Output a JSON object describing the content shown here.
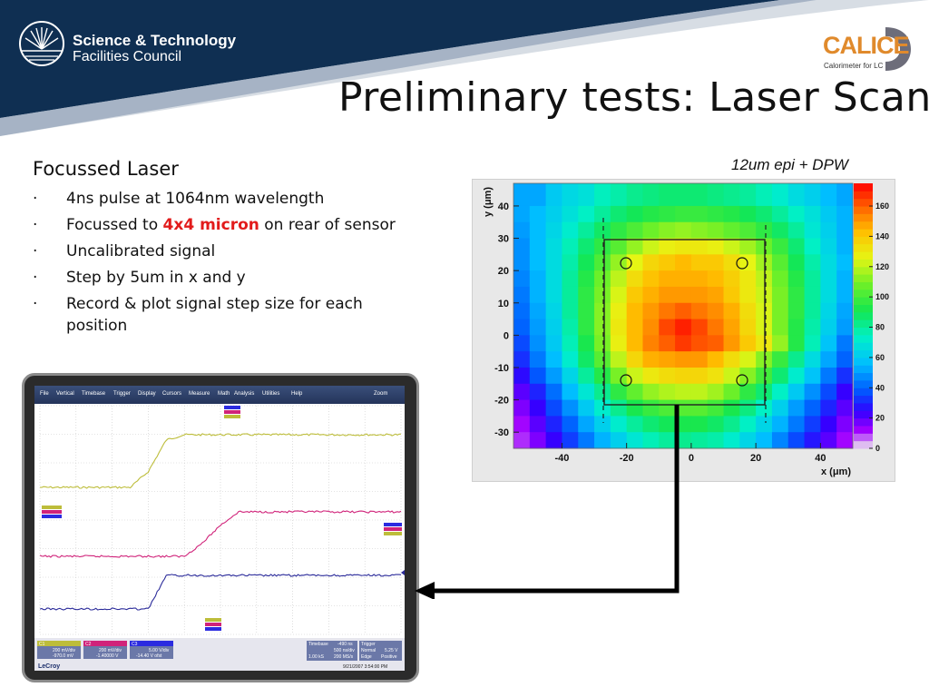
{
  "header": {
    "org_line1": "Science & Technology",
    "org_line2": "Facilities Council",
    "logo_icon": "sunburst-logo-icon",
    "calice_text": "CALICE",
    "calice_sub": "Calorimeter for LC",
    "title": "Preliminary tests: Laser Scan"
  },
  "left": {
    "panel_title": "Focussed Laser",
    "bullet_glyph": "·",
    "bullets": [
      {
        "text": "4ns pulse at 1064nm wavelength"
      },
      {
        "pre": "Focussed to ",
        "highlight": "4x4 micron",
        "post": " on rear of sensor"
      },
      {
        "text": "Uncalibrated signal"
      },
      {
        "text": "Step by 5um in x and y"
      },
      {
        "text": "Record & plot signal step size for each position"
      }
    ],
    "highlight_color": "#e21b1b"
  },
  "caption": "12um epi + DPW",
  "chart_data": [
    {
      "type": "heatmap",
      "xlabel": "x (μm)",
      "ylabel": "y (μm)",
      "x_ticks": [
        -40,
        -20,
        0,
        20,
        40
      ],
      "y_ticks": [
        -30,
        -20,
        -10,
        0,
        10,
        20,
        30,
        40
      ],
      "xlim": [
        -55,
        50
      ],
      "ylim": [
        -35,
        47
      ],
      "colorbar_ticks": [
        0,
        20,
        40,
        60,
        80,
        100,
        120,
        140,
        160
      ],
      "zlim": [
        0,
        175
      ],
      "x_bin_edges": [
        -55,
        -50,
        -45,
        -40,
        -35,
        -30,
        -25,
        -20,
        -15,
        -10,
        -5,
        0,
        5,
        10,
        15,
        20,
        25,
        30,
        35,
        40,
        45,
        50
      ],
      "y_bin_edges": [
        -35,
        -30,
        -25,
        -20,
        -15,
        -10,
        -5,
        0,
        5,
        10,
        15,
        20,
        25,
        30,
        35,
        40,
        47
      ],
      "z_rows_top_to_bottom": [
        [
          52,
          52,
          60,
          65,
          68,
          75,
          78,
          82,
          84,
          86,
          86,
          86,
          84,
          82,
          80,
          76,
          72,
          66,
          62,
          56,
          52
        ],
        [
          52,
          56,
          62,
          68,
          74,
          80,
          86,
          90,
          94,
          96,
          98,
          98,
          96,
          94,
          90,
          86,
          80,
          74,
          68,
          60,
          54
        ],
        [
          50,
          56,
          64,
          72,
          80,
          88,
          96,
          102,
          108,
          112,
          114,
          112,
          110,
          106,
          102,
          96,
          88,
          80,
          70,
          62,
          54
        ],
        [
          48,
          56,
          66,
          76,
          86,
          96,
          104,
          114,
          122,
          128,
          130,
          130,
          128,
          122,
          116,
          108,
          98,
          86,
          74,
          64,
          54
        ],
        [
          48,
          56,
          66,
          78,
          90,
          102,
          114,
          126,
          136,
          140,
          144,
          140,
          140,
          134,
          126,
          116,
          104,
          90,
          78,
          66,
          56
        ],
        [
          46,
          54,
          66,
          80,
          94,
          108,
          120,
          134,
          142,
          146,
          146,
          146,
          144,
          138,
          130,
          120,
          108,
          94,
          80,
          66,
          54
        ],
        [
          44,
          54,
          66,
          80,
          96,
          110,
          124,
          140,
          146,
          150,
          150,
          150,
          148,
          140,
          130,
          122,
          110,
          96,
          80,
          66,
          54
        ],
        [
          42,
          52,
          64,
          80,
          96,
          112,
          128,
          144,
          150,
          156,
          160,
          156,
          152,
          146,
          134,
          124,
          110,
          96,
          80,
          64,
          52
        ],
        [
          40,
          50,
          62,
          78,
          96,
          112,
          130,
          144,
          152,
          164,
          170,
          164,
          156,
          148,
          136,
          124,
          110,
          94,
          78,
          62,
          50
        ],
        [
          36,
          48,
          60,
          76,
          92,
          110,
          128,
          144,
          154,
          160,
          166,
          162,
          160,
          150,
          140,
          130,
          114,
          94,
          76,
          58,
          44
        ],
        [
          32,
          44,
          56,
          72,
          88,
          104,
          120,
          136,
          146,
          148,
          150,
          150,
          144,
          134,
          124,
          112,
          98,
          82,
          66,
          52,
          40
        ],
        [
          26,
          38,
          50,
          64,
          80,
          94,
          110,
          122,
          130,
          134,
          136,
          136,
          132,
          122,
          112,
          100,
          86,
          72,
          58,
          44,
          32
        ],
        [
          20,
          30,
          42,
          56,
          70,
          82,
          96,
          106,
          114,
          118,
          120,
          120,
          116,
          108,
          96,
          86,
          74,
          60,
          48,
          36,
          24
        ],
        [
          16,
          24,
          36,
          48,
          60,
          72,
          82,
          92,
          98,
          102,
          104,
          104,
          100,
          92,
          84,
          74,
          62,
          50,
          40,
          30,
          20
        ],
        [
          12,
          20,
          30,
          40,
          52,
          62,
          72,
          80,
          86,
          90,
          92,
          92,
          88,
          82,
          74,
          64,
          54,
          44,
          34,
          24,
          16
        ],
        [
          10,
          16,
          24,
          34,
          44,
          54,
          62,
          70,
          76,
          80,
          82,
          80,
          78,
          72,
          64,
          56,
          46,
          36,
          28,
          20,
          12
        ]
      ]
    },
    {
      "type": "line",
      "title": "",
      "x_units": "ns",
      "x": [
        -490,
        -245,
        0,
        245,
        490,
        735,
        980,
        1225,
        1470,
        1715,
        1960,
        2205,
        2450,
        2695,
        2940,
        3185,
        3430,
        3675,
        3920,
        4165,
        4410
      ],
      "series": [
        {
          "name": "C1",
          "color": "#bdbd3a",
          "values": [
            0,
            0,
            0,
            0,
            0,
            0,
            0.3,
            0.9,
            1,
            1,
            1,
            1,
            1,
            1,
            1,
            1,
            1,
            1,
            1,
            1,
            1
          ]
        },
        {
          "name": "C2",
          "color": "#d0237a",
          "values": [
            0,
            0,
            0,
            0,
            0,
            0,
            0,
            0,
            0,
            0.3,
            0.7,
            1,
            1,
            1,
            1,
            1,
            1,
            1,
            1,
            1,
            1
          ]
        },
        {
          "name": "C3",
          "color": "#2b2b9a",
          "values": [
            0,
            0,
            0,
            0,
            0,
            0,
            0,
            1,
            1,
            1,
            1,
            1,
            1,
            1,
            1,
            1,
            1,
            1,
            1,
            1,
            1
          ]
        }
      ]
    }
  ],
  "scope": {
    "menu": [
      "File",
      "Vertical",
      "Timebase",
      "Trigger",
      "Display",
      "Cursors",
      "Measure",
      "Math",
      "Analysis",
      "Utilities",
      "Help"
    ],
    "zoom_label": "Zoom",
    "brand": "LeCroy",
    "timestamp": "9/21/2007 3:54:00 PM",
    "ch1": {
      "label": "C1",
      "vdiv": "200 mV/div",
      "offset": "-970.0 mV"
    },
    "ch2": {
      "label": "C2",
      "vdiv": "200 mV/div",
      "offset": "-1.40000 V"
    },
    "ch3": {
      "label": "C3",
      "vdiv": "5.00 V/div",
      "offset": "-14.40 V ofst"
    },
    "timebase": {
      "label": "Timebase",
      "value": "-490 ns",
      "per_div": "500 ns/div",
      "samples": "1.00 kS",
      "rate": "200 MS/s"
    },
    "trigger": {
      "label": "Trigger",
      "mode": "Normal",
      "level": "5.25 V",
      "type": "Edge",
      "slope": "Positive"
    }
  },
  "colors": {
    "header_navy": "#0f2f52",
    "heatmap_frame": "#e8e8e8"
  }
}
